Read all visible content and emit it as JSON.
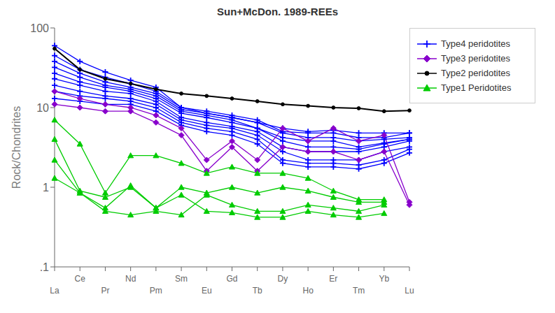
{
  "chart_data": {
    "type": "line",
    "title": "Sun+McDon. 1989-REEs",
    "y_label": "Rock/Chondrites",
    "categories": [
      "La",
      "Ce",
      "Pr",
      "Nd",
      "Pm",
      "Sm",
      "Eu",
      "Gd",
      "Tb",
      "Dy",
      "Ho",
      "Er",
      "Tm",
      "Yb",
      "Lu"
    ],
    "log": "y",
    "ylim": [
      0.1,
      100
    ],
    "yticks": [
      {
        "value": 0.1,
        "label": ".1"
      },
      1,
      10,
      100
    ],
    "grid": false,
    "legend": "right",
    "series": [
      {
        "name": "Type4 peridotites",
        "color": "#0000ff",
        "marker": "plus",
        "values": [
          60,
          38,
          28,
          22,
          18,
          10,
          8.5,
          7.5,
          6.5,
          5.5,
          5.0,
          5.2,
          4.8,
          4.8,
          4.8
        ]
      },
      {
        "name": "Type4 peridotites",
        "color": "#0000ff",
        "marker": "plus",
        "values": [
          45,
          30,
          24,
          20,
          16,
          10,
          9.0,
          8.0,
          7.0,
          5.0,
          4.8,
          4.8,
          4.2,
          4.2,
          4.8
        ]
      },
      {
        "name": "Type4 peridotites",
        "color": "#0000ff",
        "marker": "plus",
        "values": [
          38,
          27,
          21,
          18,
          15,
          9.5,
          8.5,
          7.5,
          6.5,
          4.8,
          4.2,
          4.2,
          3.8,
          4.0,
          4.2
        ]
      },
      {
        "name": "Type4 peridotites",
        "color": "#0000ff",
        "marker": "plus",
        "values": [
          32,
          24,
          19,
          17,
          14,
          9.0,
          8.0,
          7.0,
          5.5,
          4.2,
          3.8,
          3.8,
          3.2,
          3.6,
          4.0
        ]
      },
      {
        "name": "Type4 peridotites",
        "color": "#0000ff",
        "marker": "plus",
        "values": [
          27,
          21,
          18,
          16,
          13,
          8.5,
          7.5,
          6.5,
          5.5,
          3.8,
          3.2,
          3.2,
          3.0,
          3.5,
          4.0
        ]
      },
      {
        "name": "Type4 peridotites",
        "color": "#0000ff",
        "marker": "plus",
        "values": [
          23,
          19,
          16,
          15,
          12,
          7.5,
          6.5,
          5.8,
          5.0,
          3.2,
          2.8,
          2.8,
          2.8,
          3.2,
          3.8
        ]
      },
      {
        "name": "Type4 peridotites",
        "color": "#0000ff",
        "marker": "plus",
        "values": [
          19,
          16,
          14,
          13,
          11,
          7.0,
          6.0,
          5.5,
          4.5,
          2.8,
          2.2,
          2.2,
          2.2,
          2.8,
          3.2
        ]
      },
      {
        "name": "Type4 peridotites",
        "color": "#0000ff",
        "marker": "plus",
        "values": [
          16,
          14,
          13,
          12,
          10,
          6.5,
          5.5,
          5.0,
          4.0,
          2.2,
          2.0,
          2.0,
          1.9,
          2.2,
          3.0
        ]
      },
      {
        "name": "Type4 peridotites",
        "color": "#0000ff",
        "marker": "plus",
        "values": [
          13,
          12,
          11,
          11,
          9.0,
          6.0,
          5.0,
          4.5,
          3.5,
          2.0,
          1.8,
          1.8,
          1.7,
          2.0,
          2.7
        ]
      },
      {
        "name": "Type3 peridotites",
        "color": "#8800cc",
        "marker": "diamond",
        "values": [
          16,
          13,
          11,
          10,
          8.0,
          5.5,
          2.2,
          3.8,
          2.2,
          5.5,
          3.8,
          5.5,
          3.8,
          4.5,
          0.65
        ]
      },
      {
        "name": "Type3 peridotites",
        "color": "#8800cc",
        "marker": "diamond",
        "values": [
          11,
          10,
          9,
          9,
          6.5,
          4.5,
          1.6,
          3.2,
          1.6,
          3.2,
          2.8,
          2.8,
          2.2,
          2.8,
          0.6
        ]
      },
      {
        "name": "Type2 peridotites",
        "color": "#000000",
        "marker": "circle",
        "values": [
          55,
          30,
          23,
          20,
          17,
          15,
          14,
          13,
          12,
          11,
          10.5,
          10,
          9.8,
          9.0,
          9.2
        ]
      },
      {
        "name": "Type1 Peridotites",
        "color": "#00cc00",
        "marker": "triangle",
        "values": [
          7.0,
          3.5,
          0.85,
          2.5,
          2.5,
          2.0,
          1.5,
          1.8,
          1.5,
          1.5,
          1.3,
          0.9,
          0.7,
          0.7,
          null
        ]
      },
      {
        "name": "Type1 Peridotites",
        "color": "#00cc00",
        "marker": "triangle",
        "values": [
          4.0,
          0.9,
          0.75,
          1.0,
          0.55,
          1.0,
          0.85,
          1.0,
          0.85,
          1.0,
          0.9,
          0.75,
          0.65,
          0.65,
          null
        ]
      },
      {
        "name": "Type1 Peridotites",
        "color": "#00cc00",
        "marker": "triangle",
        "values": [
          2.2,
          0.85,
          0.5,
          0.45,
          0.5,
          0.45,
          0.8,
          0.6,
          0.5,
          0.5,
          0.6,
          0.55,
          0.5,
          0.6,
          null
        ]
      },
      {
        "name": "Type1 Peridotites",
        "color": "#00cc00",
        "marker": "triangle",
        "values": [
          1.3,
          0.85,
          0.55,
          1.05,
          0.55,
          0.8,
          0.5,
          0.48,
          0.42,
          0.42,
          0.5,
          0.45,
          0.42,
          0.47,
          null
        ]
      }
    ]
  }
}
